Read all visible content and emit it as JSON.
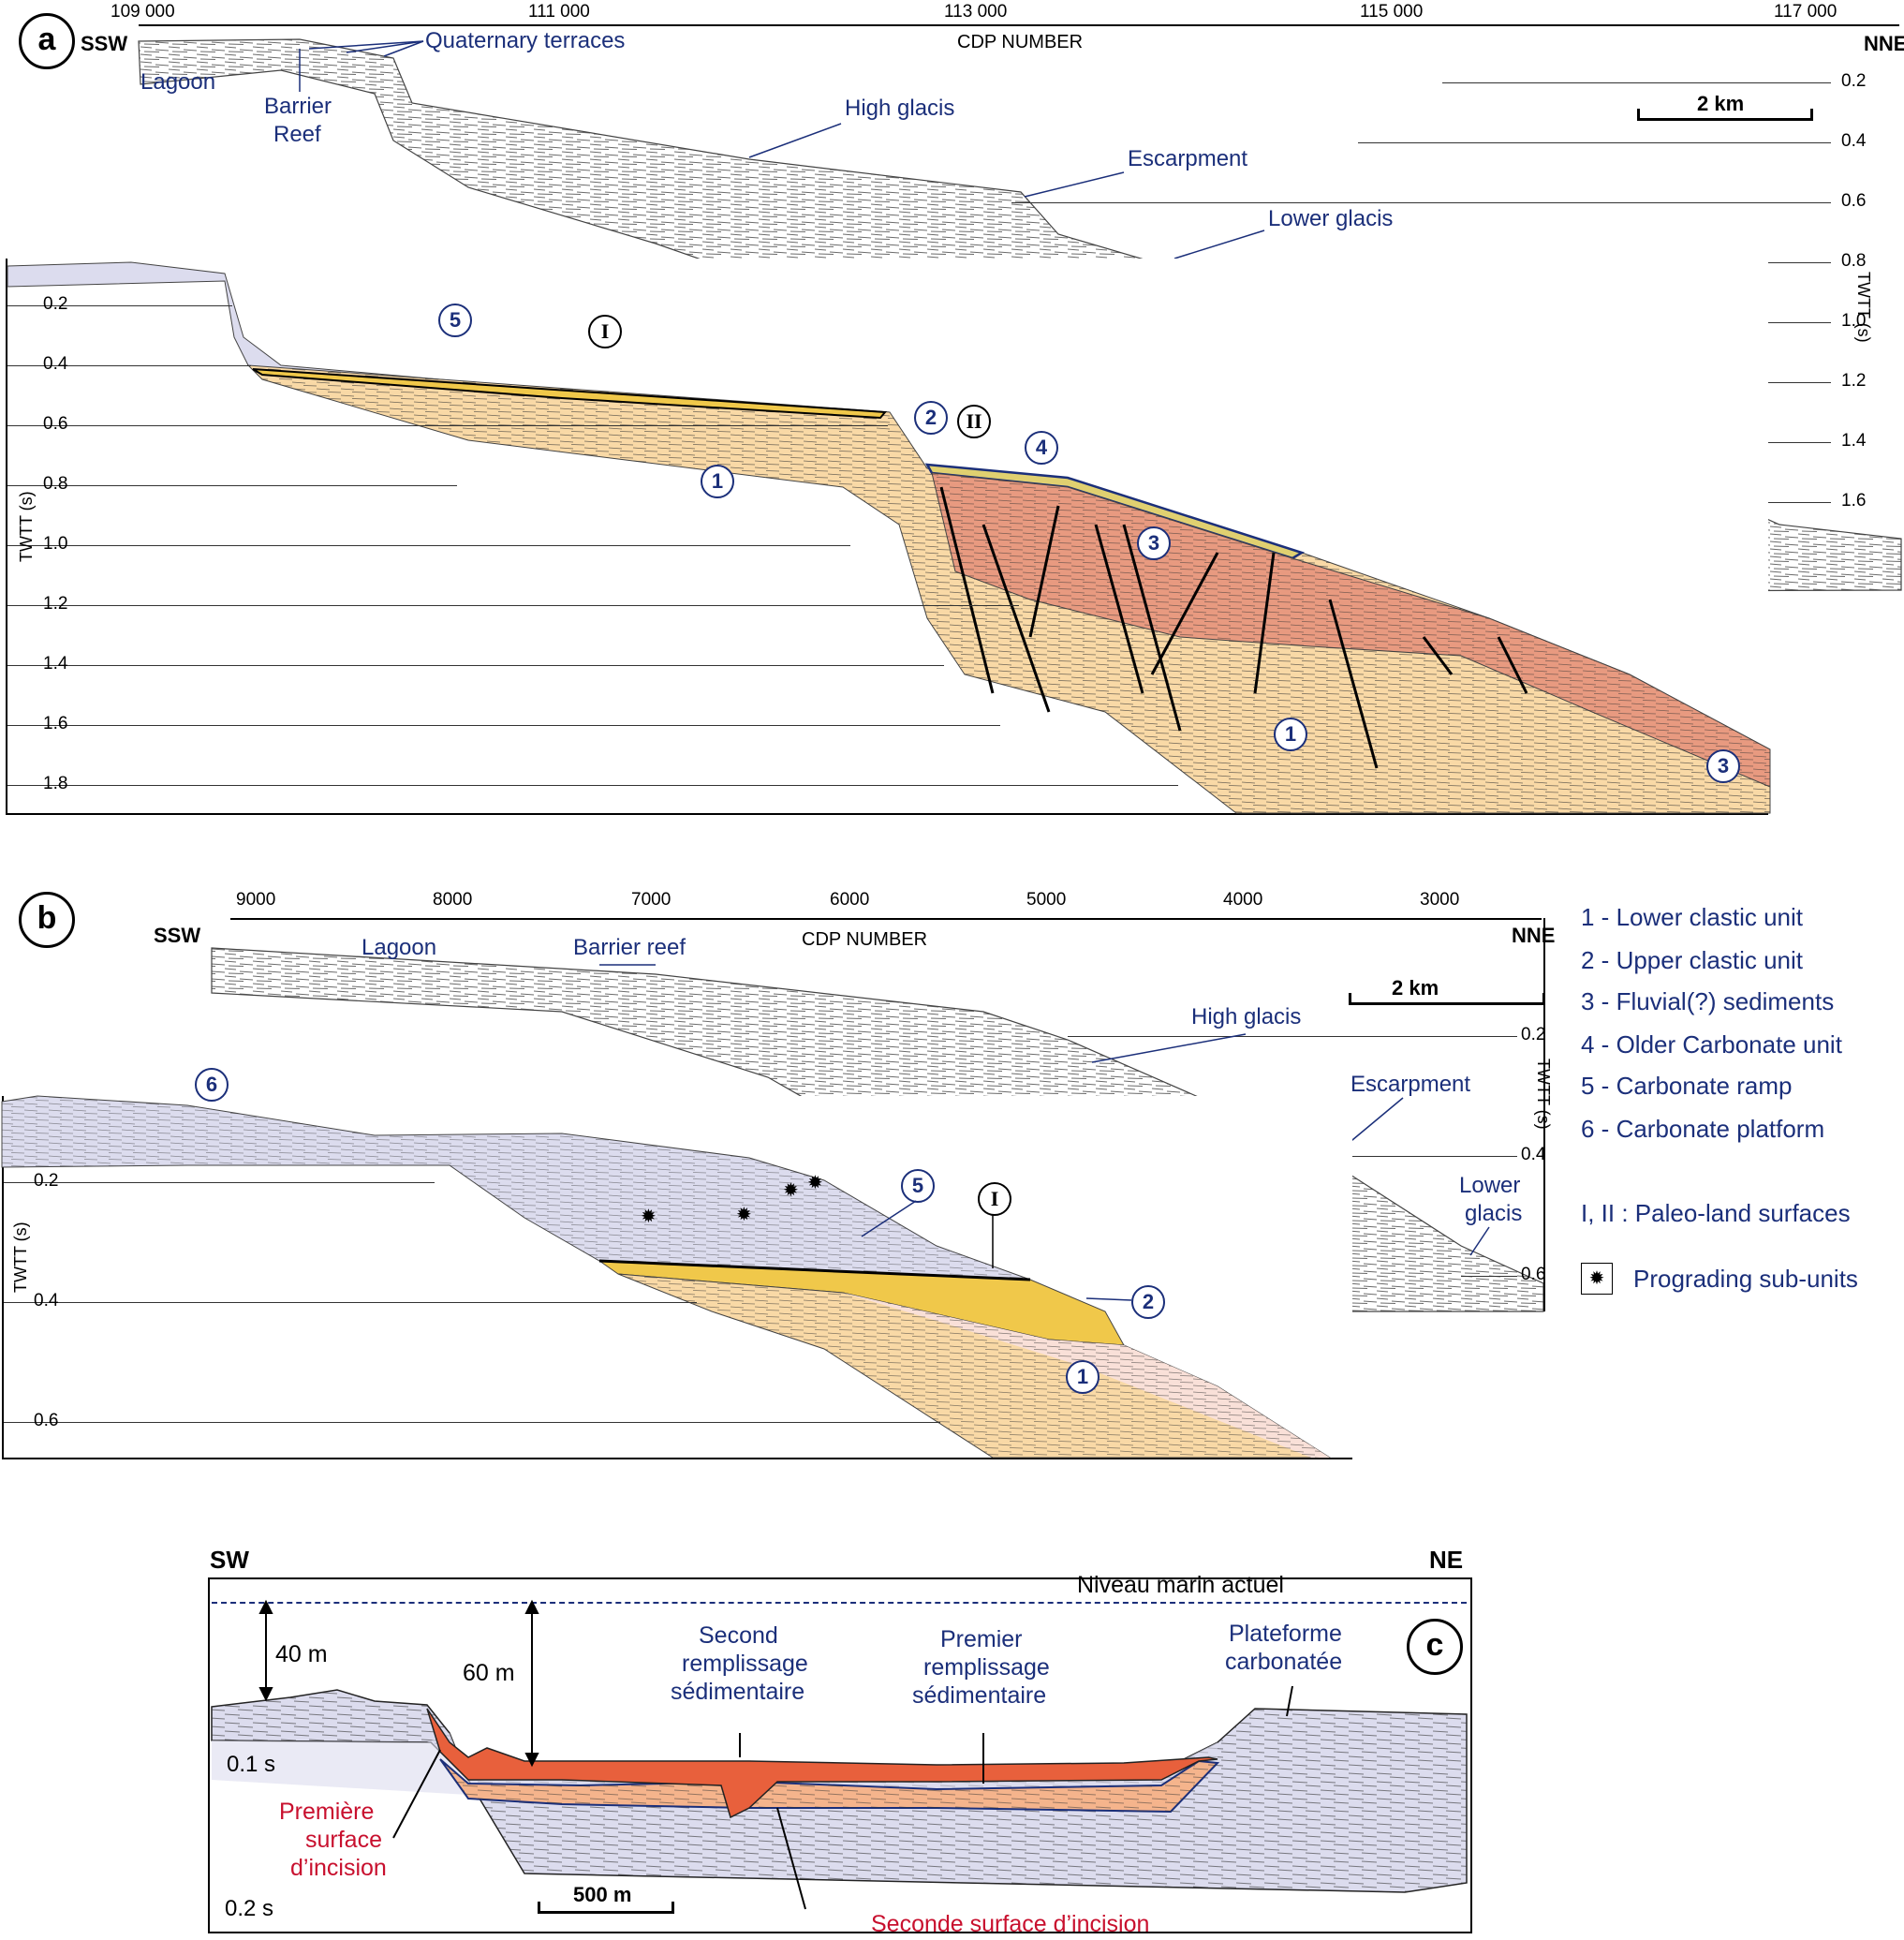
{
  "panel_a": {
    "letter": "a",
    "left_dir": "SSW",
    "right_dir": "NNE",
    "axis_title": "CDP NUMBER",
    "cdp_ticks": [
      "109 000",
      "111 000",
      "113 000",
      "115 000",
      "117 000"
    ],
    "twtt_label": "TWTT (s)",
    "twtt_right": [
      "0.2",
      "0.4",
      "0.6",
      "0.8",
      "1.0",
      "1.2",
      "1.4",
      "1.6"
    ],
    "twtt_left": [
      "0.2",
      "0.4",
      "0.6",
      "0.8",
      "1.0",
      "1.2",
      "1.4",
      "1.6",
      "1.8"
    ],
    "scale": "2 km",
    "annotations": {
      "lagoon": "Lagoon",
      "barrier_reef_1": "Barrier",
      "barrier_reef_2": "Reef",
      "quaternary_terraces": "Quaternary terraces",
      "high_glacis": "High glacis",
      "escarpment": "Escarpment",
      "lower_glacis": "Lower glacis"
    },
    "unit_markers": [
      "5",
      "I",
      "2",
      "II",
      "4",
      "1",
      "3",
      "1",
      "3"
    ]
  },
  "panel_b": {
    "letter": "b",
    "left_dir": "SSW",
    "right_dir": "NNE",
    "axis_title": "CDP NUMBER",
    "cdp_ticks": [
      "9000",
      "8000",
      "7000",
      "6000",
      "5000",
      "4000",
      "3000"
    ],
    "twtt_label": "TWTT (s)",
    "twtt_right": [
      "0.2",
      "0.4",
      "0.6"
    ],
    "twtt_left": [
      "0.2",
      "0.4",
      "0.6"
    ],
    "scale": "2 km",
    "annotations": {
      "lagoon": "Lagoon",
      "barrier_reef": "Barrier reef",
      "high_glacis": "High glacis",
      "escarpment": "Escarpment",
      "lower_glacis_1": "Lower",
      "lower_glacis_2": "glacis"
    },
    "unit_markers": [
      "6",
      "5",
      "I",
      "2",
      "1"
    ]
  },
  "legend": {
    "items": [
      "1 - Lower clastic unit",
      "2 - Upper clastic unit",
      "3 - Fluvial(?) sediments",
      "4 - Older Carbonate unit",
      "5 - Carbonate ramp",
      "6 - Carbonate platform"
    ],
    "paleo": "I, II : Paleo-land surfaces",
    "prograding": "Prograding sub-units",
    "prograding_icon": "star-icon"
  },
  "panel_c": {
    "letter": "c",
    "left_dir": "SW",
    "right_dir": "NE",
    "sea_level": "Niveau marin actuel",
    "depth_40": "40 m",
    "depth_60": "60 m",
    "t01": "0.1 s",
    "t02": "0.2 s",
    "scale": "500 m",
    "second_fill_1": "Second",
    "second_fill_2": "remplissage",
    "second_fill_3": "sédimentaire",
    "first_fill_1": "Premier",
    "first_fill_2": "remplissage",
    "first_fill_3": "sédimentaire",
    "platform_1": "Plateforme",
    "platform_2": "carbonatée",
    "first_incision_1": "Première",
    "first_incision_2": "surface",
    "first_incision_3": "d’incision",
    "second_incision": "Seconde surface d’incision"
  },
  "colors": {
    "unit1": "#f9d9a6",
    "unit1_light": "#f9e0d8",
    "unit2": "#f0c84a",
    "unit3": "#e89a80",
    "unit5": "#dcdcee",
    "fill_second": "#e8603c",
    "fill_first": "#f5b48c",
    "text_blue": "#1b2f7a",
    "text_red": "#c8102e"
  }
}
